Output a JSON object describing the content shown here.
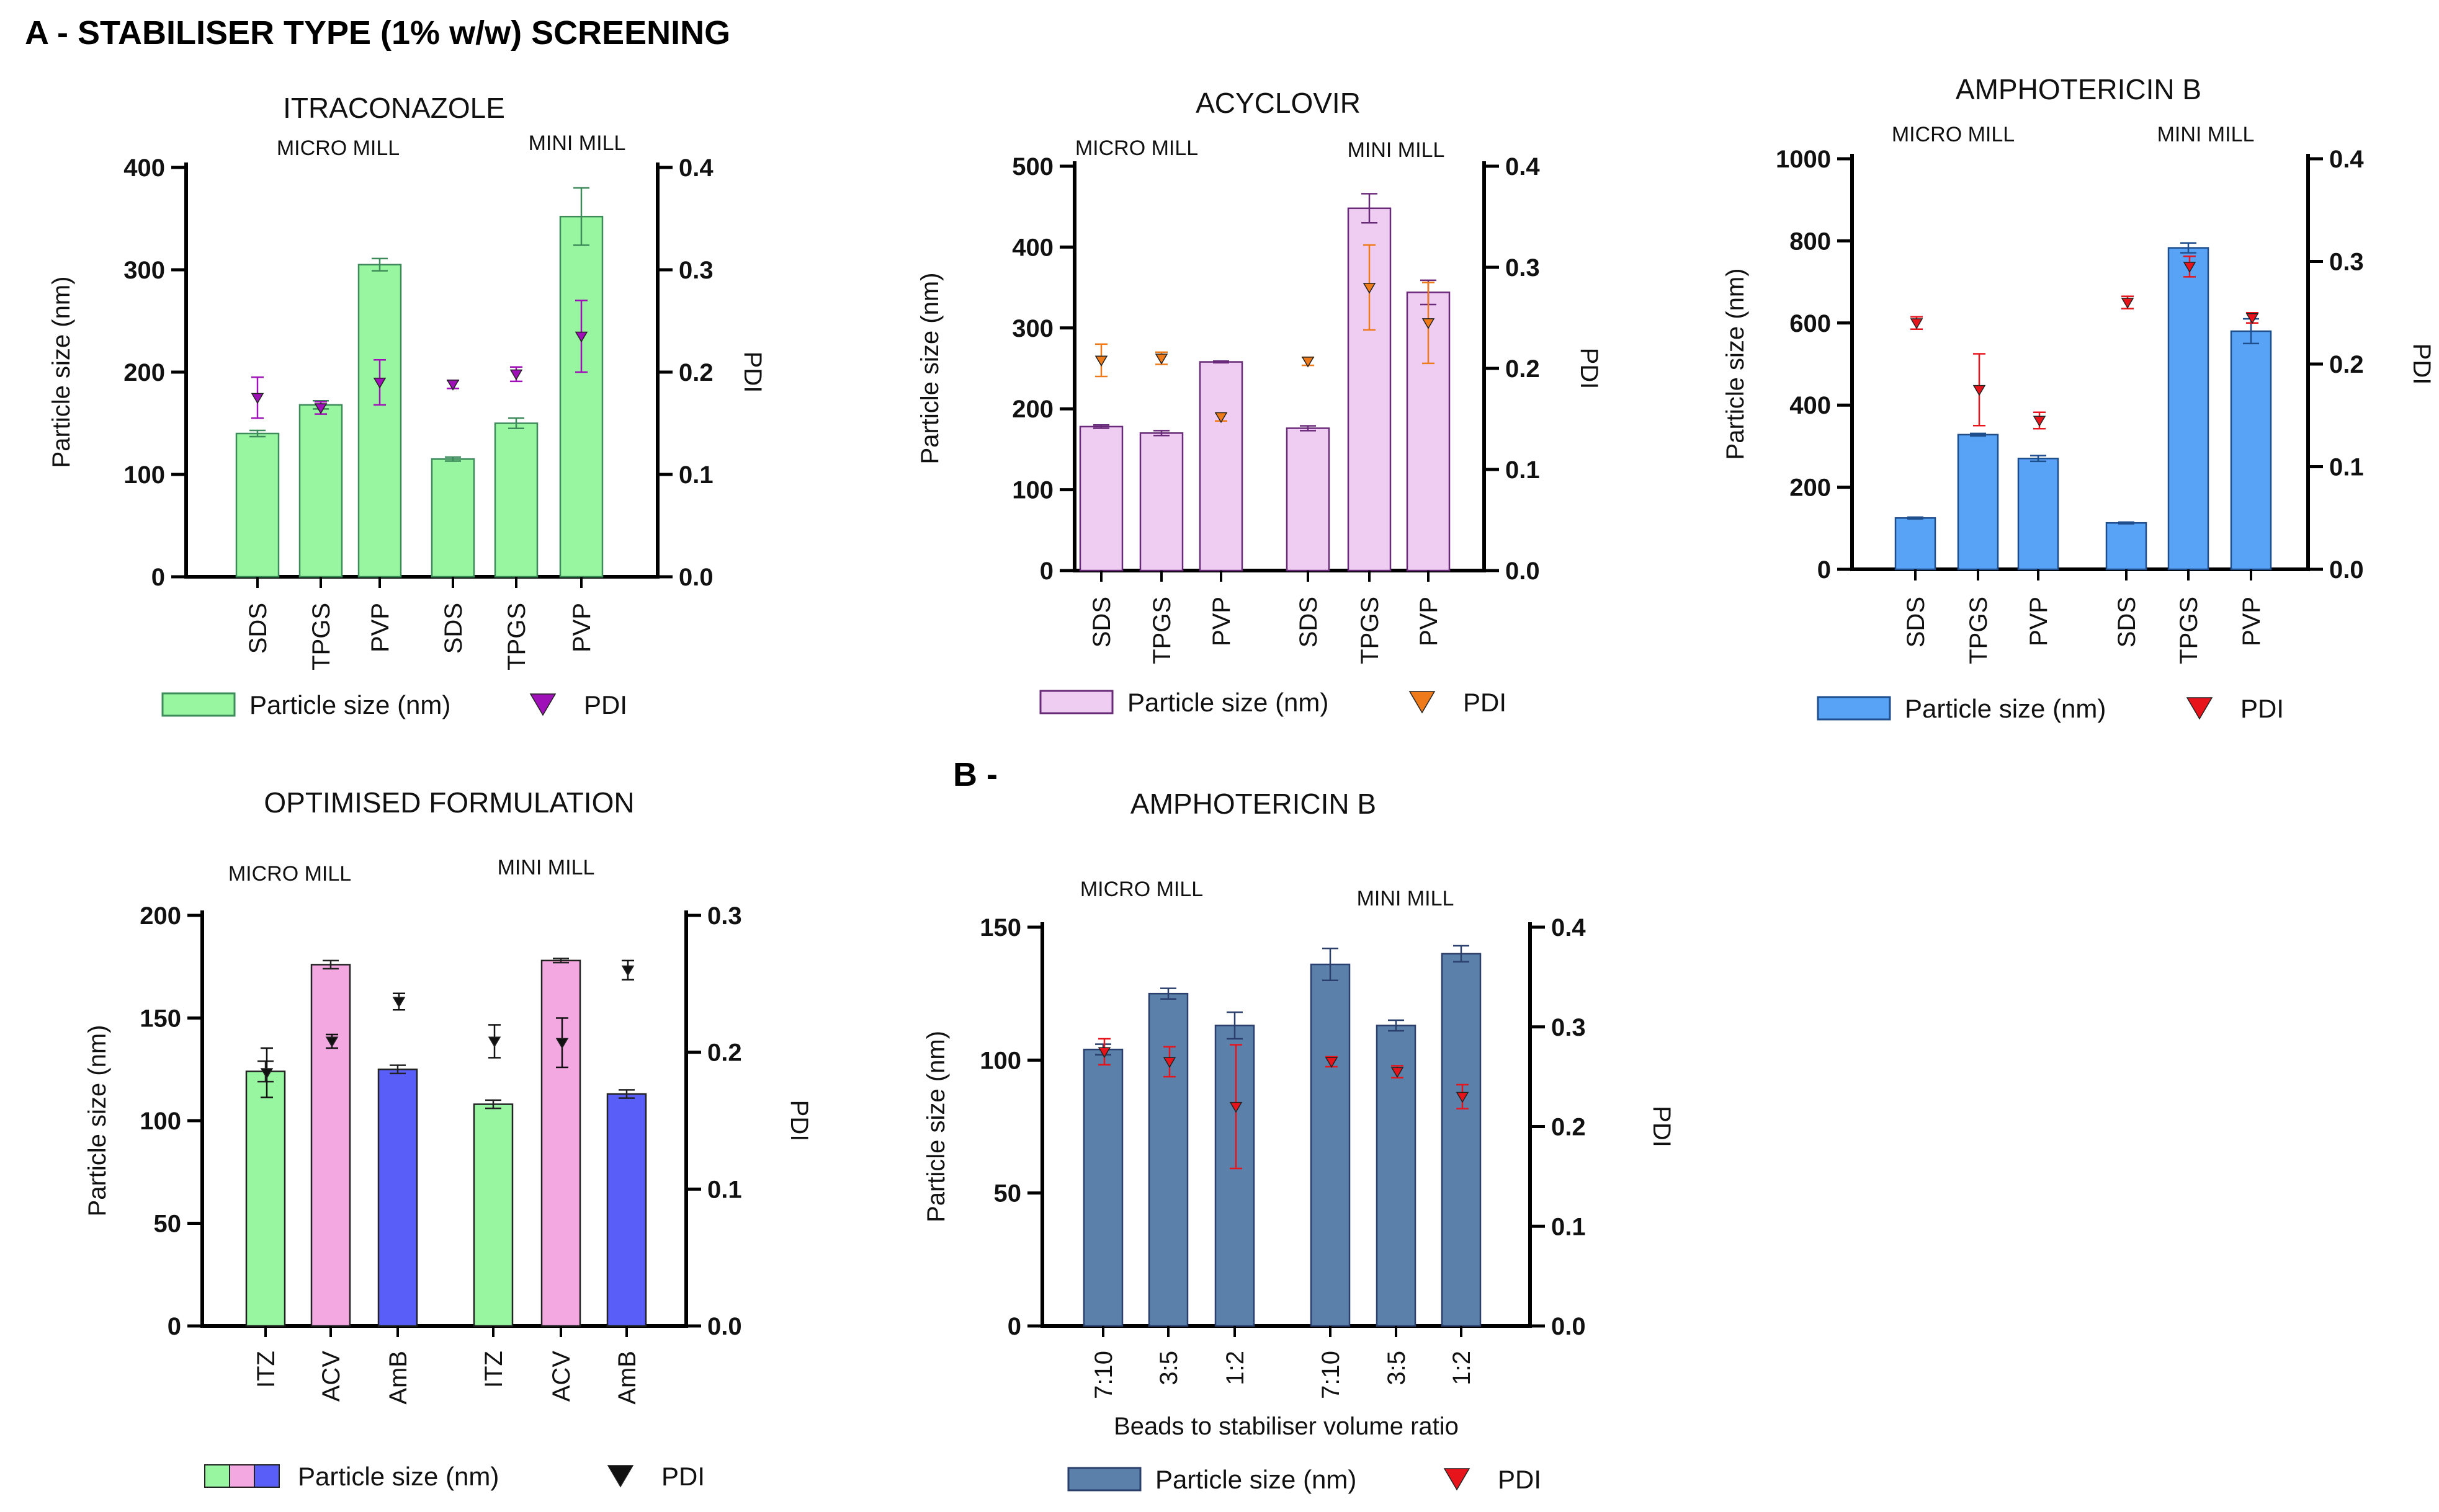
{
  "figure_heading_a": "A - STABILISER TYPE (1% w/w) SCREENING",
  "figure_heading_b": "B -",
  "colors": {
    "red_marker": "#e8141b",
    "black_marker": "#111111"
  },
  "chart_data": [
    {
      "id": "itz",
      "type": "bar",
      "title": "ITRACONAZOLE",
      "group_labels": [
        "MICRO MILL",
        "MINI MILL"
      ],
      "categories": [
        "SDS",
        "TPGS",
        "PVP",
        "SDS",
        "TPGS",
        "PVP"
      ],
      "ylabel": "Particle size (nm)",
      "y2label": "PDI",
      "ylim": [
        0,
        400
      ],
      "yticks": [
        0,
        100,
        200,
        300,
        400
      ],
      "y2lim": [
        0,
        0.4
      ],
      "y2ticks": [
        "0.0",
        "0.1",
        "0.2",
        "0.3",
        "0.4"
      ],
      "series": [
        {
          "name": "Particle size (nm)",
          "kind": "bar",
          "values": [
            140,
            168,
            305,
            115,
            150,
            352
          ],
          "errors": [
            3,
            4,
            6,
            2,
            5,
            28
          ],
          "colors": [
            "#98f5a0",
            "#98f5a0",
            "#98f5a0",
            "#98f5a0",
            "#98f5a0",
            "#98f5a0"
          ],
          "edge": "#3d8a5a"
        },
        {
          "name": "PDI",
          "kind": "marker",
          "values": [
            0.175,
            0.165,
            0.19,
            0.188,
            0.198,
            0.235
          ],
          "errors": [
            0.02,
            0.006,
            0.022,
            0.004,
            0.007,
            0.035
          ],
          "color": "#a010b8"
        }
      ],
      "legend": [
        {
          "label": "Particle size (nm)",
          "swatch": "bar",
          "color": "#98f5a0",
          "edge": "#3d8a5a"
        },
        {
          "label": "PDI",
          "swatch": "marker",
          "color": "#a010b8"
        }
      ]
    },
    {
      "id": "acv",
      "type": "bar",
      "title": "ACYCLOVIR",
      "group_labels": [
        "MICRO MILL",
        "MINI MILL"
      ],
      "categories": [
        "SDS",
        "TPGS",
        "PVP",
        "SDS",
        "TPGS",
        "PVP"
      ],
      "ylabel": "Particle size (nm)",
      "y2label": "PDI",
      "ylim": [
        0,
        500
      ],
      "yticks": [
        0,
        100,
        200,
        300,
        400,
        500
      ],
      "y2lim": [
        0,
        0.4
      ],
      "y2ticks": [
        "0.0",
        "0.1",
        "0.2",
        "0.3",
        "0.4"
      ],
      "series": [
        {
          "name": "Particle size (nm)",
          "kind": "bar",
          "values": [
            178,
            170,
            258,
            176,
            448,
            344
          ],
          "errors": [
            2,
            3,
            1,
            3,
            18,
            15
          ],
          "colors": [
            "#efcdf2",
            "#efcdf2",
            "#efcdf2",
            "#efcdf2",
            "#efcdf2",
            "#efcdf2"
          ],
          "edge": "#6a2a7a"
        },
        {
          "name": "PDI",
          "kind": "marker",
          "values": [
            0.208,
            0.21,
            0.152,
            0.207,
            0.28,
            0.245
          ],
          "errors": [
            0.016,
            0.006,
            0.004,
            0.004,
            0.042,
            0.04
          ],
          "color": "#ee7a1a"
        }
      ],
      "legend": [
        {
          "label": "Particle size (nm)",
          "swatch": "bar",
          "color": "#efcdf2",
          "edge": "#6a2a7a"
        },
        {
          "label": "PDI",
          "swatch": "marker",
          "color": "#ee7a1a"
        }
      ]
    },
    {
      "id": "amb",
      "type": "bar",
      "title": "AMPHOTERICIN B",
      "group_labels": [
        "MICRO MILL",
        "MINI MILL"
      ],
      "categories": [
        "SDS",
        "TPGS",
        "PVP",
        "SDS",
        "TPGS",
        "PVP"
      ],
      "ylabel": "Particle size (nm)",
      "y2label": "PDI",
      "ylim": [
        0,
        1000
      ],
      "yticks": [
        0,
        200,
        400,
        600,
        800,
        1000
      ],
      "y2lim": [
        0,
        0.4
      ],
      "y2ticks": [
        "0.0",
        "0.1",
        "0.2",
        "0.3",
        "0.4"
      ],
      "series": [
        {
          "name": "Particle size (nm)",
          "kind": "bar",
          "values": [
            125,
            328,
            270,
            113,
            783,
            580
          ],
          "errors": [
            2,
            3,
            7,
            2,
            12,
            30
          ],
          "colors": [
            "#58a3f5",
            "#58a3f5",
            "#58a3f5",
            "#58a3f5",
            "#58a3f5",
            "#58a3f5"
          ],
          "edge": "#1f4e8c"
        },
        {
          "name": "PDI",
          "kind": "marker",
          "values": [
            0.24,
            0.175,
            0.145,
            0.26,
            0.295,
            0.245
          ],
          "errors": [
            0.006,
            0.035,
            0.008,
            0.006,
            0.01,
            0.005
          ],
          "color": "#e8141b"
        }
      ],
      "legend": [
        {
          "label": "Particle size (nm)",
          "swatch": "bar",
          "color": "#58a3f5",
          "edge": "#1f4e8c"
        },
        {
          "label": "PDI",
          "swatch": "marker",
          "color": "#e8141b"
        }
      ]
    },
    {
      "id": "opt",
      "type": "bar",
      "title": "OPTIMISED FORMULATION",
      "group_labels": [
        "MICRO MILL",
        "MINI MILL"
      ],
      "categories": [
        "ITZ",
        "ACV",
        "AmB",
        "ITZ",
        "ACV",
        "AmB"
      ],
      "ylabel": "Particle size (nm)",
      "y2label": "PDI",
      "ylim": [
        0,
        200
      ],
      "yticks": [
        0,
        50,
        100,
        150,
        200
      ],
      "y2lim": [
        0,
        0.3
      ],
      "y2ticks": [
        "0.0",
        "0.1",
        "0.2",
        "0.3"
      ],
      "series": [
        {
          "name": "Particle size (nm)",
          "kind": "bar",
          "values": [
            124,
            176,
            125,
            108,
            178,
            113
          ],
          "errors": [
            5,
            2,
            2,
            2,
            1,
            2
          ],
          "colors": [
            "#98f5a0",
            "#f4a8e2",
            "#5a5ef8",
            "#98f5a0",
            "#f4a8e2",
            "#5a5ef8"
          ],
          "edge": "#222222"
        },
        {
          "name": "PDI",
          "kind": "marker",
          "values": [
            0.185,
            0.208,
            0.237,
            0.208,
            0.207,
            0.26
          ],
          "errors": [
            0.018,
            0.005,
            0.006,
            0.012,
            0.018,
            0.007
          ],
          "color": "#111111"
        }
      ],
      "legend": [
        {
          "label": "Particle size (nm)",
          "swatch": "tri-bar",
          "colors": [
            "#98f5a0",
            "#f4a8e2",
            "#5a5ef8"
          ],
          "edge": "#222222"
        },
        {
          "label": "PDI",
          "swatch": "marker",
          "color": "#111111"
        }
      ]
    },
    {
      "id": "ampb2",
      "type": "bar",
      "title": "AMPHOTERICIN B",
      "group_labels": [
        "MICRO MILL",
        "MINI MILL"
      ],
      "categories": [
        "7:10",
        "3:5",
        "1:2",
        "7:10",
        "3:5",
        "1:2"
      ],
      "xlabel": "Beads to stabiliser volume ratio",
      "ylabel": "Particle size (nm)",
      "y2label": "PDI",
      "ylim": [
        0,
        150
      ],
      "yticks": [
        0,
        50,
        100,
        150
      ],
      "y2lim": [
        0,
        0.4
      ],
      "y2ticks": [
        "0.0",
        "0.1",
        "0.2",
        "0.3",
        "0.4"
      ],
      "series": [
        {
          "name": "Particle size (nm)",
          "kind": "bar",
          "values": [
            104,
            125,
            113,
            136,
            113,
            140
          ],
          "errors": [
            2,
            2,
            5,
            6,
            2,
            3
          ],
          "colors": [
            "#5b80aa",
            "#5b80aa",
            "#5b80aa",
            "#5b80aa",
            "#5b80aa",
            "#5b80aa"
          ],
          "edge": "#2a3f6c"
        },
        {
          "name": "PDI",
          "kind": "marker",
          "values": [
            0.275,
            0.265,
            0.22,
            0.265,
            0.255,
            0.23
          ],
          "errors": [
            0.013,
            0.015,
            0.062,
            0.005,
            0.006,
            0.012
          ],
          "color": "#e8141b"
        }
      ],
      "legend": [
        {
          "label": "Particle size (nm)",
          "swatch": "bar",
          "color": "#5b80aa",
          "edge": "#2a3f6c"
        },
        {
          "label": "PDI",
          "swatch": "marker",
          "color": "#e8141b"
        }
      ]
    }
  ]
}
